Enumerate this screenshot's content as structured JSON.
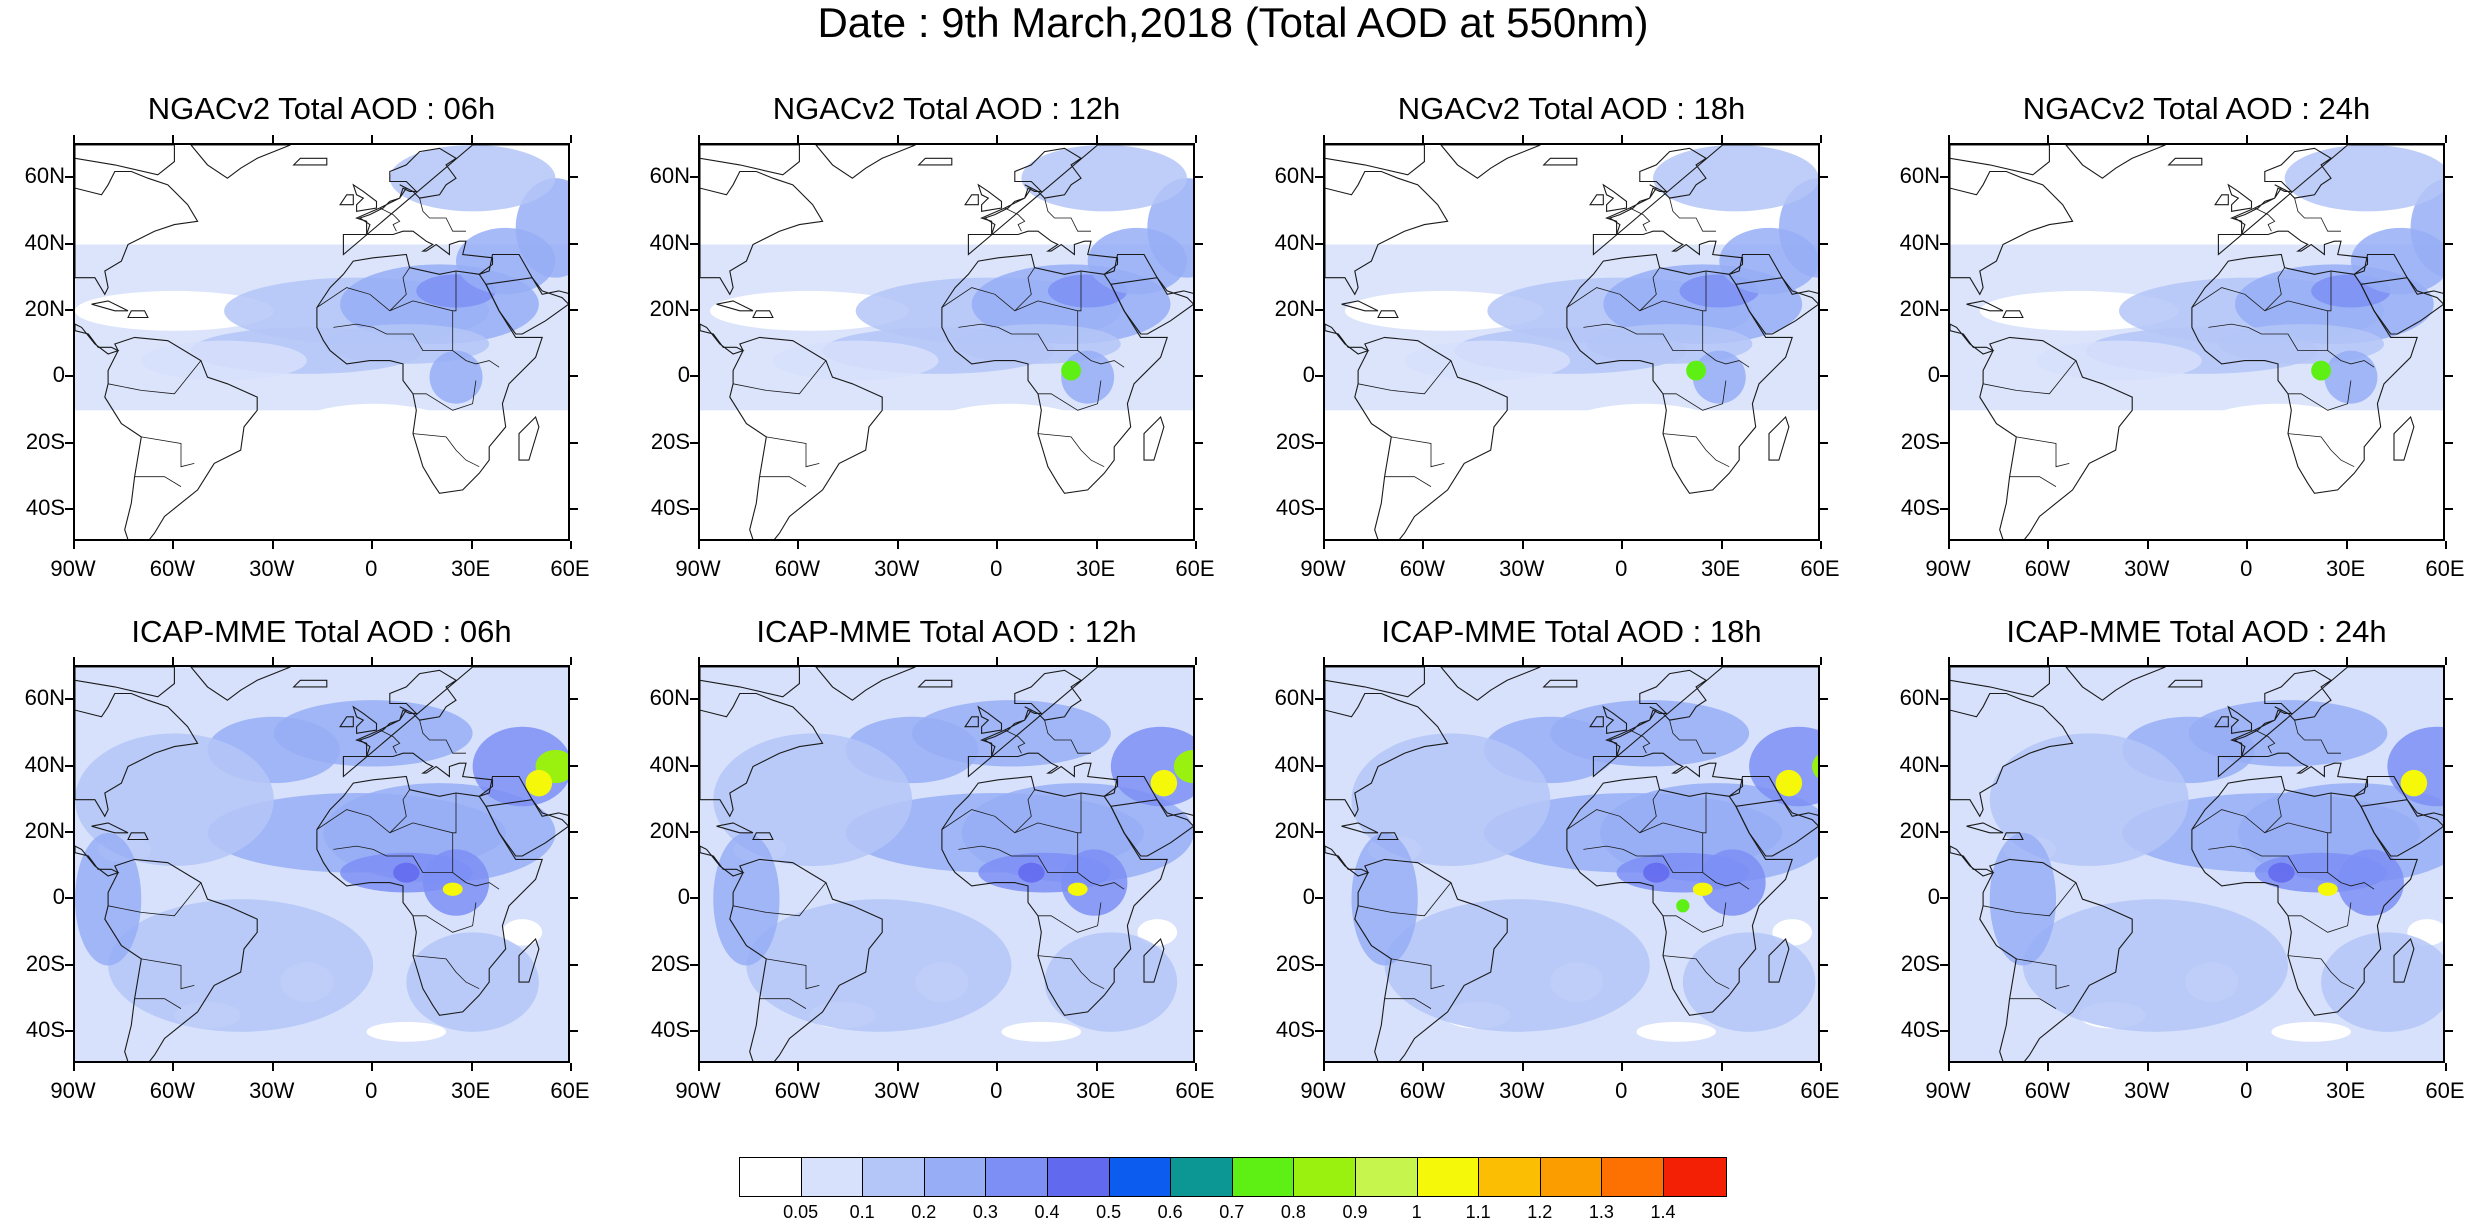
{
  "title": "Date : 9th March,2018 (Total AOD at 550nm)",
  "rows": [
    {
      "model": "NGACv2",
      "panels": [
        {
          "title": "NGACv2 Total AOD : 06h",
          "hour": "06h"
        },
        {
          "title": "NGACv2 Total AOD : 12h",
          "hour": "12h"
        },
        {
          "title": "NGACv2 Total AOD : 18h",
          "hour": "18h"
        },
        {
          "title": "NGACv2 Total AOD : 24h",
          "hour": "24h"
        }
      ]
    },
    {
      "model": "ICAP-MME",
      "panels": [
        {
          "title": "ICAP-MME Total AOD : 06h",
          "hour": "06h"
        },
        {
          "title": "ICAP-MME Total AOD : 12h",
          "hour": "12h"
        },
        {
          "title": "ICAP-MME Total AOD : 18h",
          "hour": "18h"
        },
        {
          "title": "ICAP-MME Total AOD : 24h",
          "hour": "24h"
        }
      ]
    }
  ],
  "lat_labels": [
    "60N",
    "40N",
    "20N",
    "0",
    "20S",
    "40S"
  ],
  "lat_values": [
    60,
    40,
    20,
    0,
    -20,
    -40
  ],
  "lon_labels": [
    "90W",
    "60W",
    "30W",
    "0",
    "30E",
    "60E"
  ],
  "lon_values": [
    -90,
    -60,
    -30,
    0,
    30,
    60
  ],
  "map_extent": {
    "lon_min": -90,
    "lon_max": 60,
    "lat_min": -50,
    "lat_max": 70
  },
  "colorbar": {
    "labels": [
      "0.05",
      "0.1",
      "0.2",
      "0.3",
      "0.4",
      "0.5",
      "0.6",
      "0.7",
      "0.8",
      "0.9",
      "1",
      "1.1",
      "1.2",
      "1.3",
      "1.4"
    ],
    "colors": [
      "#ffffff",
      "#d7e1fb",
      "#b4c6f7",
      "#97aef6",
      "#7d8ff4",
      "#6169ef",
      "#0b5cef",
      "#0c9795",
      "#5ef014",
      "#9af00f",
      "#c6f54e",
      "#f6f80a",
      "#fcbe02",
      "#fb9c01",
      "#fd7102",
      "#f42006"
    ]
  },
  "colors": {
    "land_outline": "#1a1a1a",
    "ocean_base": "#e8edfc"
  }
}
